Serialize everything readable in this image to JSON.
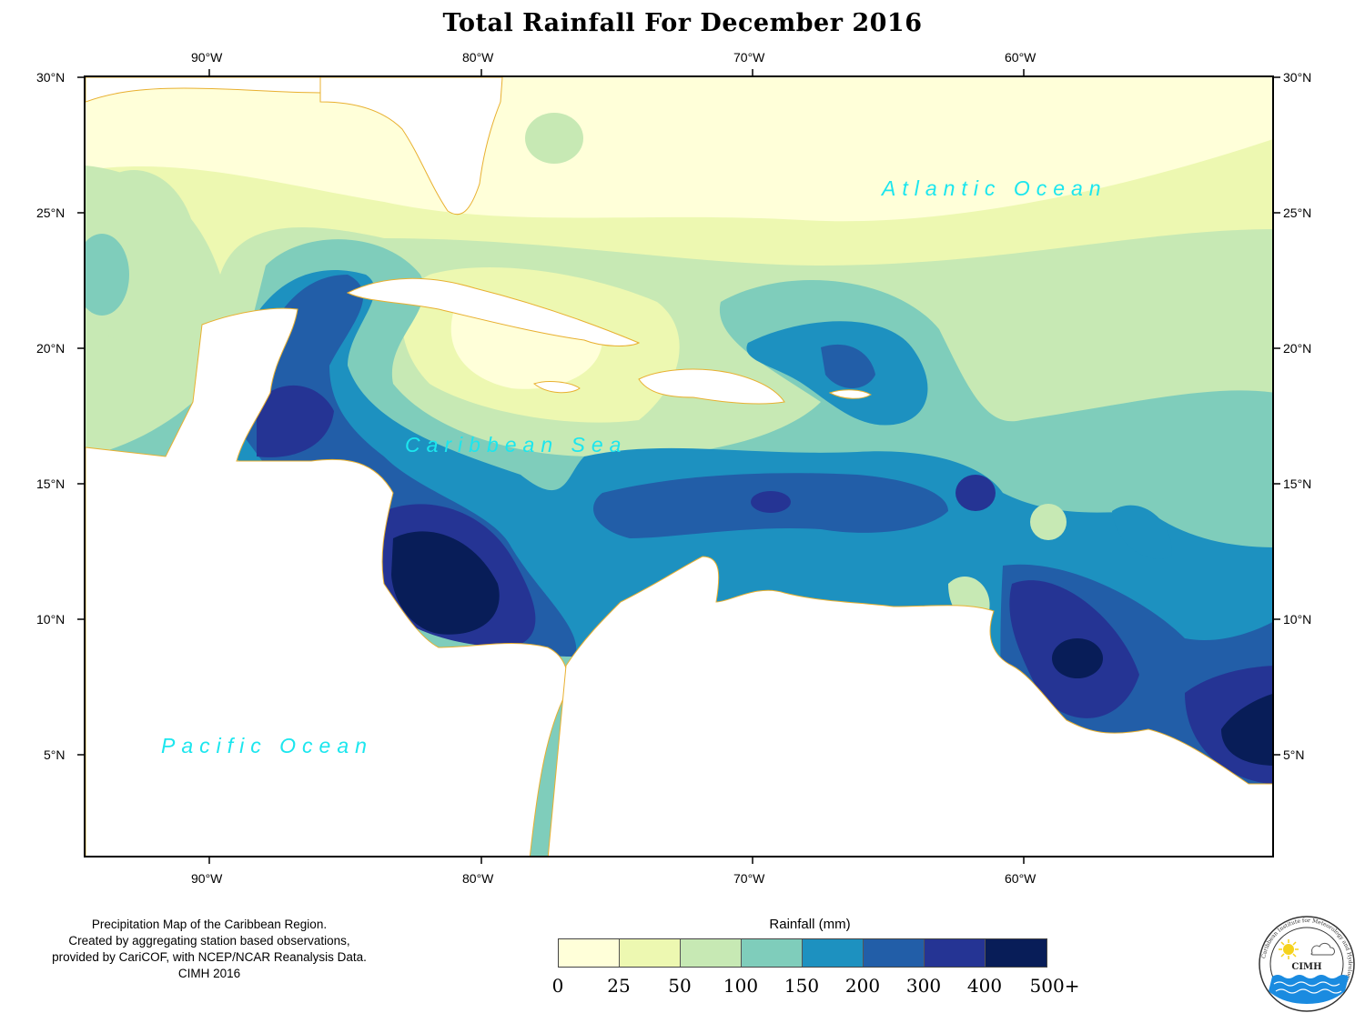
{
  "title": "Total Rainfall For December 2016",
  "axes": {
    "top": [
      "90°W",
      "80°W",
      "70°W",
      "60°W"
    ],
    "bottom": [
      "90°W",
      "80°W",
      "70°W",
      "60°W"
    ],
    "left": [
      "30°N",
      "25°N",
      "20°N",
      "15°N",
      "10°N",
      "5°N"
    ],
    "right": [
      "30°N",
      "25°N",
      "20°N",
      "15°N",
      "10°N",
      "5°N"
    ]
  },
  "ocean_labels": {
    "atlantic": "Atlantic Ocean",
    "caribbean": "Caribbean Sea",
    "pacific": "Pacific Ocean"
  },
  "credits": [
    "Precipitation Map of the Caribbean Region.",
    "Created by aggregating station based observations,",
    "provided by CariCOF, with NCEP/NCAR Reanalysis Data.",
    "CIMH 2016"
  ],
  "legend": {
    "title": "Rainfall (mm)",
    "ticks": [
      "0",
      "25",
      "50",
      "100",
      "150",
      "200",
      "300",
      "400",
      "500+"
    ],
    "colors": [
      "#ffffd9",
      "#edf8b1",
      "#c7e9b4",
      "#7fcdbb",
      "#1d91c0",
      "#225ea8",
      "#253494",
      "#081d58"
    ]
  },
  "colors": {
    "coastline": "#e8b030",
    "ocean_label": "#1ce6ee"
  },
  "logo": {
    "text": "CIMH",
    "ring_text": "Caribbean Institute for Meteorology and Hydrology"
  }
}
